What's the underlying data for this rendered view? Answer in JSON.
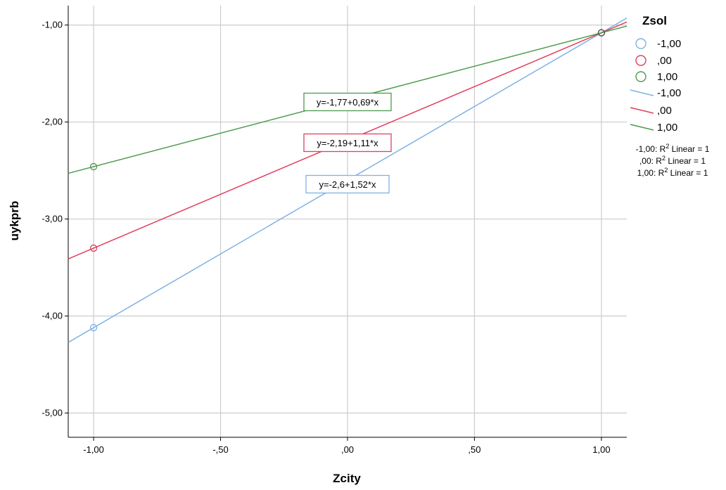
{
  "chart_data": {
    "type": "line",
    "xlabel": "Zcity",
    "ylabel": "uykprb",
    "xlim": [
      -1.1,
      1.1
    ],
    "ylim": [
      -5.25,
      -0.8
    ],
    "x_ticks": [
      -1.0,
      -0.5,
      0.0,
      0.5,
      1.0
    ],
    "x_tick_labels": [
      "-1,00",
      "-,50",
      ",00",
      ",50",
      "1,00"
    ],
    "y_ticks": [
      -5.0,
      -4.0,
      -3.0,
      -2.0,
      -1.0
    ],
    "y_tick_labels": [
      "-5,00",
      "-4,00",
      "-3,00",
      "-2,00",
      "-1,00"
    ],
    "grid": true,
    "legend_title": "Zsol",
    "legend_position": "right",
    "series": [
      {
        "name": "-1,00",
        "color": "#7fb2e5",
        "intercept": -2.6,
        "slope": 1.52,
        "points": [
          {
            "x": -1.0,
            "y": -4.12
          },
          {
            "x": 1.0,
            "y": -1.08
          }
        ],
        "equation_label": "y=-2,6+1,52*x",
        "r2_label": "-1,00: R",
        "r2_suffix": " Linear = 1"
      },
      {
        "name": ",00",
        "color": "#e0405e",
        "intercept": -2.19,
        "slope": 1.11,
        "points": [
          {
            "x": -1.0,
            "y": -3.3
          },
          {
            "x": 1.0,
            "y": -1.08
          }
        ],
        "equation_label": "y=-2,19+1,11*x",
        "r2_label": ",00: R",
        "r2_suffix": " Linear = 1"
      },
      {
        "name": "1,00",
        "color": "#4c9a4c",
        "intercept": -1.77,
        "slope": 0.69,
        "points": [
          {
            "x": -1.0,
            "y": -2.46
          },
          {
            "x": 1.0,
            "y": -1.08
          }
        ],
        "equation_label": "y=-1,77+0,69*x",
        "r2_label": "1,00: R",
        "r2_suffix": " Linear = 1"
      }
    ],
    "legend_marker_labels": [
      "-1,00",
      ",00",
      "1,00"
    ],
    "legend_line_labels": [
      "-1,00",
      ",00",
      "1,00"
    ],
    "r2_superscript": "2"
  }
}
